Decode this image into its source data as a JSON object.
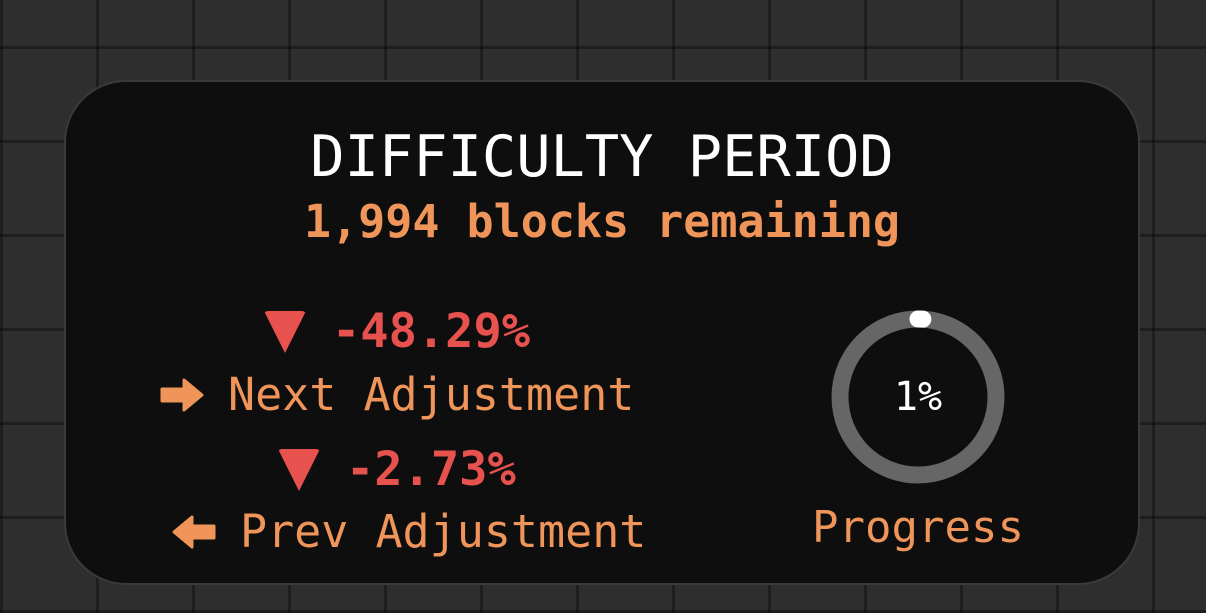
{
  "widget": {
    "title": "DIFFICULTY PERIOD",
    "subtitle": "1,994 blocks remaining",
    "next": {
      "change": "-48.29%",
      "label": "Next Adjustment",
      "direction_icon": "triangle-down-icon",
      "arrow_icon": "arrow-right-icon"
    },
    "prev": {
      "change": "-2.73%",
      "label": "Prev Adjustment",
      "direction_icon": "triangle-down-icon",
      "arrow_icon": "arrow-left-icon"
    },
    "progress": {
      "value_percent": 1,
      "text": "1%",
      "label": "Progress"
    }
  },
  "colors": {
    "accent": "#f0955a",
    "negative": "#e8524e",
    "ring_track": "#666666",
    "ring_fill": "#ffffff",
    "card": "#0e0e0e"
  }
}
